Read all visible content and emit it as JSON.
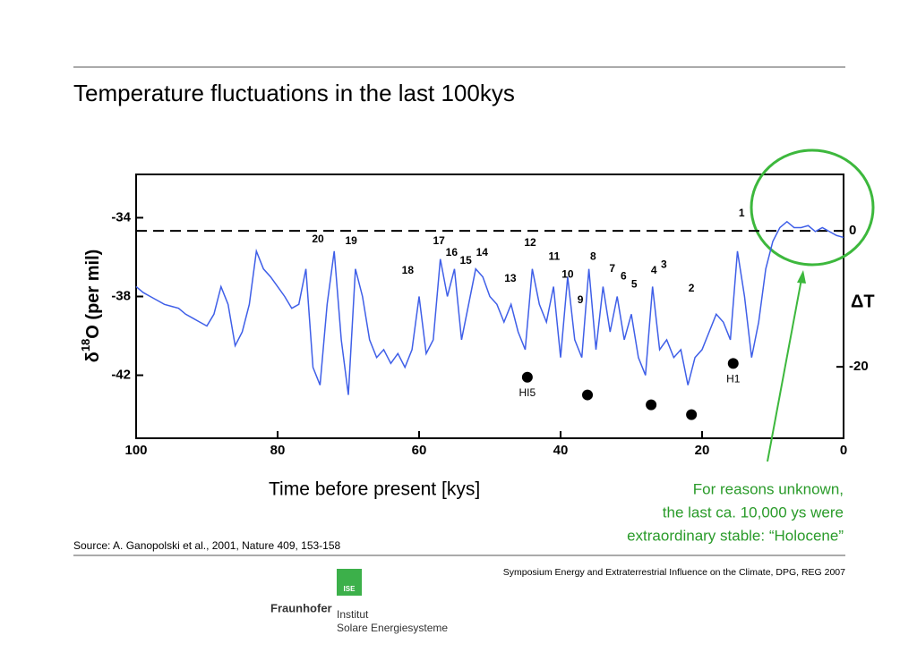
{
  "slide": {
    "title": "Temperature fluctuations in the last 100kys",
    "source": "Source:  A. Ganopolski et al., 2001, Nature 409, 153-158",
    "footer": "Symposium Energy and Extraterrestrial Influence on the Climate, DPG, REG 2007",
    "note": [
      "For reasons unknown,",
      "the last ca. 10,000 ys were",
      "extraordinary stable: “Holocene”"
    ],
    "logo": {
      "mark": "ISE",
      "name": "Fraunhofer",
      "lines": [
        "Institut",
        "Solare Energiesysteme"
      ]
    }
  },
  "chart_data": {
    "type": "line",
    "x_label": "Time before present [kys]",
    "y_label": [
      "δ",
      "18",
      "O (per mil)"
    ],
    "y2_label": "ΔT",
    "xlim": [
      100,
      0
    ],
    "xticks": [
      100,
      80,
      60,
      40,
      20,
      0
    ],
    "ylim": [
      -45.2,
      -31.8
    ],
    "yticks": [
      -34,
      -38,
      -42
    ],
    "y2lim": [
      -30.5,
      8.3
    ],
    "y2ticks": [
      0,
      -20
    ],
    "reference_line": {
      "axis": "y2",
      "value": 0
    },
    "color": "#3f5fe8",
    "x": [
      100,
      99,
      98,
      97,
      96,
      95,
      94,
      93,
      92,
      91,
      90,
      89,
      88,
      87,
      86,
      85,
      84,
      83,
      82,
      81,
      80,
      79,
      78,
      77,
      76,
      75,
      74,
      73,
      72,
      71,
      70,
      69,
      68,
      67,
      66,
      65,
      64,
      63,
      62,
      61,
      60,
      59,
      58,
      57,
      56,
      55,
      54,
      53,
      52,
      51,
      50,
      49,
      48,
      47,
      46,
      45,
      44,
      43,
      42,
      41,
      40,
      39,
      38,
      37,
      36,
      35,
      34,
      33,
      32,
      31,
      30,
      29,
      28,
      27,
      26,
      25,
      24,
      23,
      22,
      21,
      20,
      19,
      18,
      17,
      16,
      15,
      14,
      13,
      12,
      11,
      10,
      9,
      8,
      7,
      6,
      5,
      4,
      3,
      2,
      1,
      0
    ],
    "values": [
      -37.5,
      -37.8,
      -38.0,
      -38.2,
      -38.4,
      -38.5,
      -38.6,
      -38.9,
      -39.1,
      -39.3,
      -39.5,
      -38.9,
      -37.5,
      -38.4,
      -40.5,
      -39.8,
      -38.4,
      -35.7,
      -36.6,
      -37.0,
      -37.5,
      -38.0,
      -38.6,
      -38.4,
      -36.6,
      -41.6,
      -42.5,
      -38.4,
      -35.7,
      -40.2,
      -43.0,
      -36.6,
      -38.0,
      -40.2,
      -41.1,
      -40.7,
      -41.4,
      -40.9,
      -41.6,
      -40.7,
      -38.0,
      -40.9,
      -40.2,
      -36.1,
      -38.0,
      -36.6,
      -40.2,
      -38.4,
      -36.6,
      -37.0,
      -38.0,
      -38.4,
      -39.3,
      -38.4,
      -39.8,
      -40.7,
      -36.6,
      -38.4,
      -39.3,
      -37.5,
      -41.1,
      -37.0,
      -40.2,
      -41.1,
      -36.6,
      -40.7,
      -37.5,
      -39.8,
      -38.0,
      -40.2,
      -38.9,
      -41.1,
      -42.0,
      -37.5,
      -40.7,
      -40.2,
      -41.1,
      -40.7,
      -42.5,
      -41.1,
      -40.7,
      -39.8,
      -38.9,
      -39.3,
      -40.2,
      -35.7,
      -38.0,
      -41.1,
      -39.3,
      -36.6,
      -35.2,
      -34.5,
      -34.2,
      -34.5,
      -34.5,
      -34.4,
      -34.7,
      -34.5,
      -34.7,
      -34.9,
      -35.0
    ],
    "annotations": [
      {
        "text": "20",
        "x": 74.3,
        "y": -35.1
      },
      {
        "text": "19",
        "x": 69.6,
        "y": -35.2
      },
      {
        "text": "18",
        "x": 61.6,
        "y": -36.7
      },
      {
        "text": "17",
        "x": 57.2,
        "y": -35.2
      },
      {
        "text": "16",
        "x": 55.4,
        "y": -35.8
      },
      {
        "text": "15",
        "x": 53.4,
        "y": -36.2
      },
      {
        "text": "14",
        "x": 51.1,
        "y": -35.8
      },
      {
        "text": "13",
        "x": 47.1,
        "y": -37.1
      },
      {
        "text": "12",
        "x": 44.3,
        "y": -35.3
      },
      {
        "text": "11",
        "x": 40.9,
        "y": -36.0
      },
      {
        "text": "10",
        "x": 39.0,
        "y": -36.9
      },
      {
        "text": "9",
        "x": 37.2,
        "y": -38.2
      },
      {
        "text": "8",
        "x": 35.4,
        "y": -36.0
      },
      {
        "text": "7",
        "x": 32.7,
        "y": -36.6
      },
      {
        "text": "6",
        "x": 31.1,
        "y": -37.0
      },
      {
        "text": "5",
        "x": 29.6,
        "y": -37.4
      },
      {
        "text": "4",
        "x": 26.8,
        "y": -36.7
      },
      {
        "text": "3",
        "x": 25.4,
        "y": -36.4
      },
      {
        "text": "2",
        "x": 21.5,
        "y": -37.6
      },
      {
        "text": "1",
        "x": 14.4,
        "y": -33.8
      }
    ],
    "events": {
      "x": [
        44.7,
        36.2,
        27.2,
        21.5,
        15.6
      ],
      "values": [
        -42.1,
        -43.0,
        -43.5,
        -44.0,
        -41.4
      ],
      "labels": [
        "HI5",
        null,
        null,
        null,
        "H1"
      ],
      "color": "#000000"
    }
  }
}
